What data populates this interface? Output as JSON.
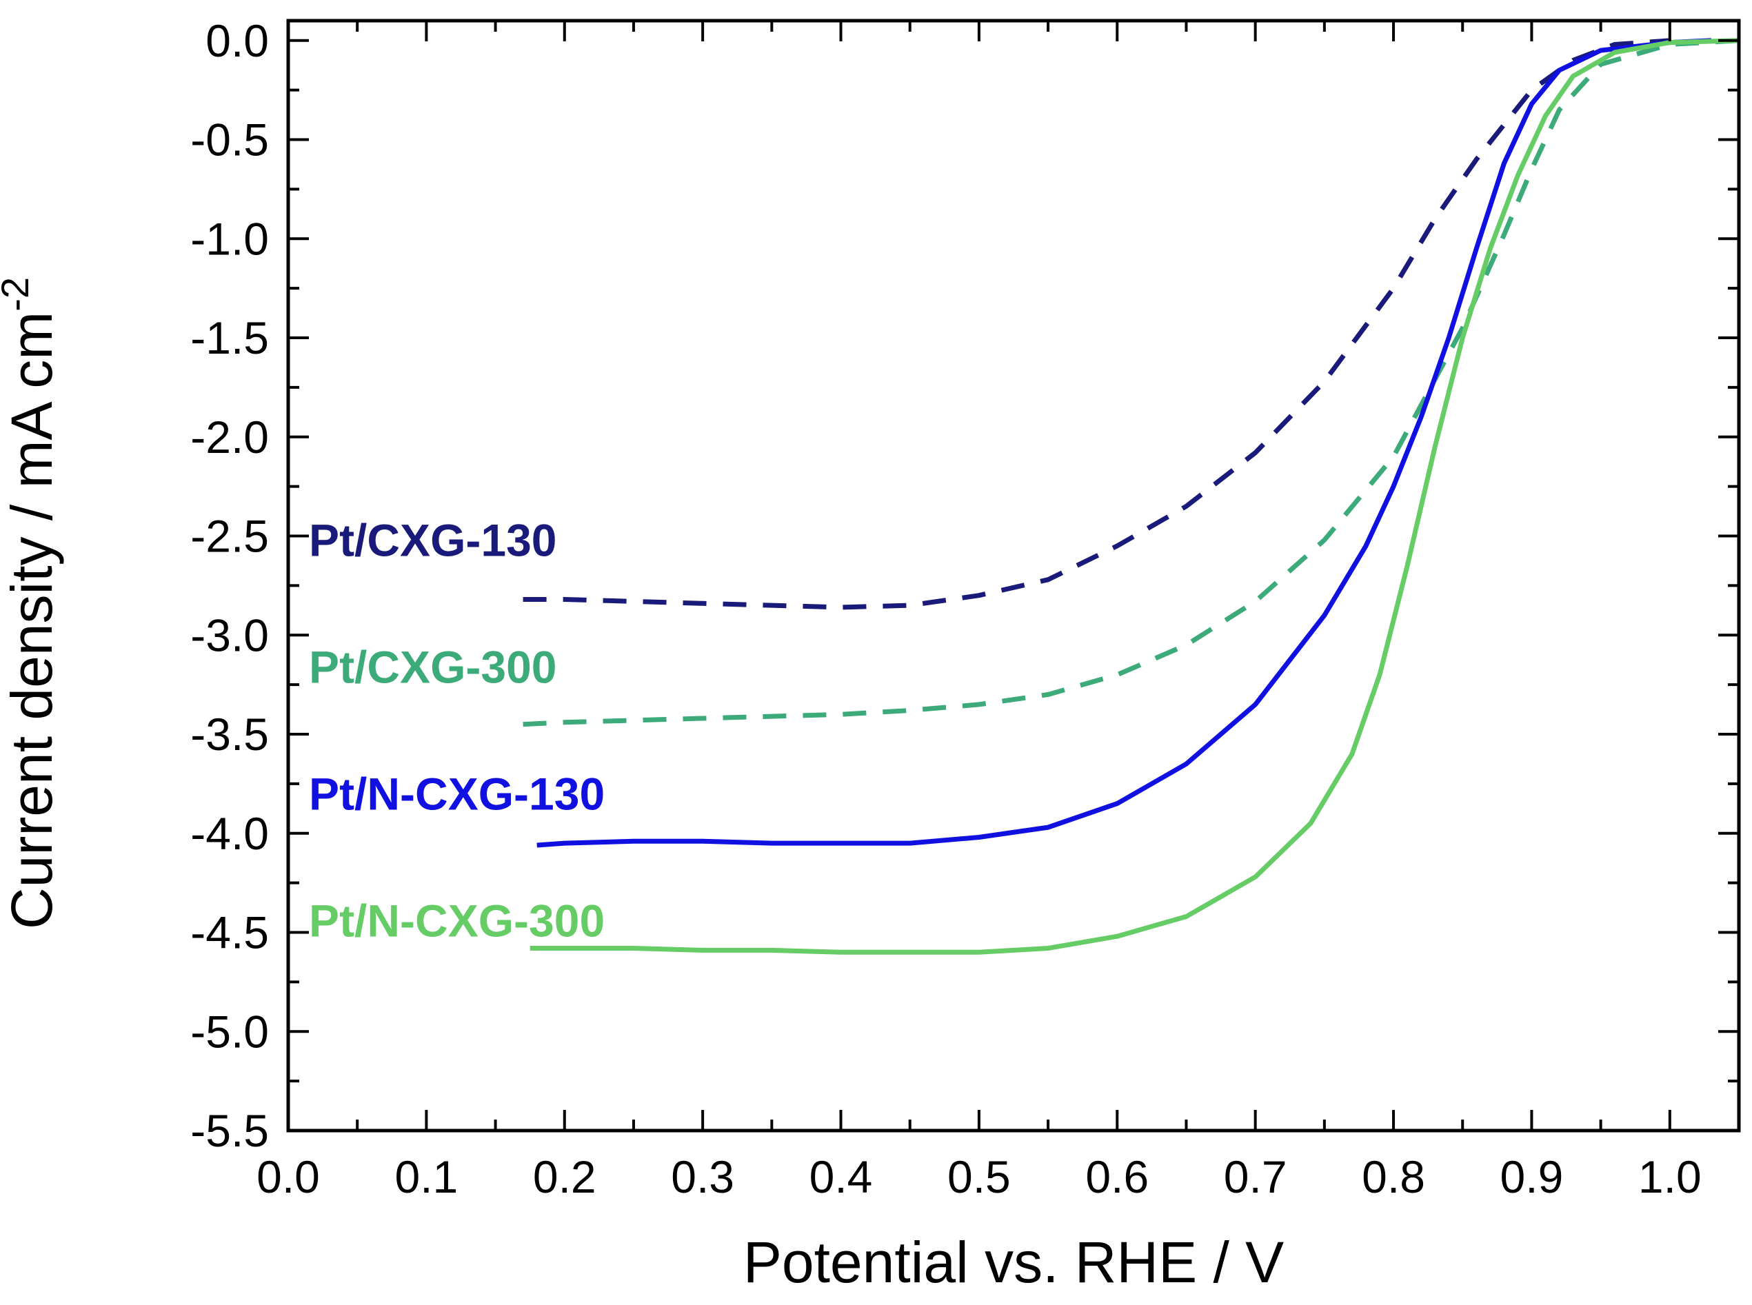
{
  "chart_data": {
    "type": "line",
    "title": "",
    "xlabel": "Potential vs. RHE / V",
    "ylabel_main": "Current density / mA cm",
    "ylabel_superscript": "-2",
    "xlim": [
      0.0,
      1.05
    ],
    "ylim": [
      -5.5,
      0.1
    ],
    "xticks": [
      {
        "value": 0.0,
        "label": "0.0"
      },
      {
        "value": 0.1,
        "label": "0.1"
      },
      {
        "value": 0.2,
        "label": "0.2"
      },
      {
        "value": 0.3,
        "label": "0.3"
      },
      {
        "value": 0.4,
        "label": "0.4"
      },
      {
        "value": 0.5,
        "label": "0.5"
      },
      {
        "value": 0.6,
        "label": "0.6"
      },
      {
        "value": 0.7,
        "label": "0.7"
      },
      {
        "value": 0.8,
        "label": "0.8"
      },
      {
        "value": 0.9,
        "label": "0.9"
      },
      {
        "value": 1.0,
        "label": "1.0"
      }
    ],
    "yticks": [
      {
        "value": 0.0,
        "label": "0.0"
      },
      {
        "value": -0.5,
        "label": "-0.5"
      },
      {
        "value": -1.0,
        "label": "-1.0"
      },
      {
        "value": -1.5,
        "label": "-1.5"
      },
      {
        "value": -2.0,
        "label": "-2.0"
      },
      {
        "value": -2.5,
        "label": "-2.5"
      },
      {
        "value": -3.0,
        "label": "-3.0"
      },
      {
        "value": -3.5,
        "label": "-3.5"
      },
      {
        "value": -4.0,
        "label": "-4.0"
      },
      {
        "value": -4.5,
        "label": "-4.5"
      },
      {
        "value": -5.0,
        "label": "-5.0"
      },
      {
        "value": -5.5,
        "label": "-5.5"
      }
    ],
    "grid": false,
    "series": [
      {
        "name": "Pt/CXG-130",
        "color": "#1a1a7a",
        "style": "dashed",
        "x": [
          0.17,
          0.2,
          0.25,
          0.3,
          0.35,
          0.4,
          0.45,
          0.5,
          0.55,
          0.6,
          0.65,
          0.7,
          0.75,
          0.8,
          0.83,
          0.86,
          0.9,
          0.93,
          0.96,
          1.0
        ],
        "y": [
          -2.82,
          -2.82,
          -2.83,
          -2.84,
          -2.85,
          -2.86,
          -2.85,
          -2.8,
          -2.72,
          -2.55,
          -2.35,
          -2.08,
          -1.72,
          -1.25,
          -0.9,
          -0.6,
          -0.25,
          -0.1,
          -0.02,
          0.0
        ]
      },
      {
        "name": "Pt/CXG-300",
        "color": "#3daa7a",
        "style": "dashed",
        "x": [
          0.17,
          0.2,
          0.25,
          0.3,
          0.35,
          0.4,
          0.45,
          0.5,
          0.55,
          0.6,
          0.65,
          0.7,
          0.75,
          0.8,
          0.85,
          0.88,
          0.9,
          0.92,
          0.95,
          1.0,
          1.05
        ],
        "y": [
          -3.45,
          -3.44,
          -3.43,
          -3.42,
          -3.41,
          -3.4,
          -3.38,
          -3.35,
          -3.3,
          -3.2,
          -3.05,
          -2.83,
          -2.52,
          -2.1,
          -1.45,
          -0.98,
          -0.65,
          -0.35,
          -0.12,
          -0.02,
          0.0
        ]
      },
      {
        "name": "Pt/N-CXG-130",
        "color": "#1010e0",
        "style": "solid",
        "x": [
          0.18,
          0.2,
          0.25,
          0.3,
          0.35,
          0.4,
          0.45,
          0.5,
          0.55,
          0.6,
          0.65,
          0.7,
          0.75,
          0.78,
          0.8,
          0.82,
          0.84,
          0.86,
          0.88,
          0.9,
          0.92,
          0.95,
          1.0,
          1.03
        ],
        "y": [
          -4.06,
          -4.05,
          -4.04,
          -4.04,
          -4.05,
          -4.05,
          -4.05,
          -4.02,
          -3.97,
          -3.85,
          -3.65,
          -3.35,
          -2.9,
          -2.55,
          -2.25,
          -1.9,
          -1.5,
          -1.05,
          -0.62,
          -0.32,
          -0.15,
          -0.05,
          -0.01,
          0.0
        ]
      },
      {
        "name": "Pt/N-CXG-300",
        "color": "#66cc66",
        "style": "solid",
        "x": [
          0.175,
          0.2,
          0.25,
          0.3,
          0.35,
          0.4,
          0.45,
          0.5,
          0.55,
          0.6,
          0.65,
          0.7,
          0.74,
          0.77,
          0.79,
          0.81,
          0.83,
          0.85,
          0.87,
          0.89,
          0.91,
          0.93,
          0.96,
          1.0,
          1.05
        ],
        "y": [
          -4.58,
          -4.58,
          -4.58,
          -4.59,
          -4.59,
          -4.6,
          -4.6,
          -4.6,
          -4.58,
          -4.52,
          -4.42,
          -4.22,
          -3.95,
          -3.6,
          -3.2,
          -2.65,
          -2.05,
          -1.5,
          -1.05,
          -0.68,
          -0.38,
          -0.18,
          -0.06,
          -0.01,
          0.0
        ]
      }
    ],
    "annotations": [
      {
        "text": "Pt/CXG-130",
        "color": "#1a1a7a",
        "x": 0.015,
        "y": -2.6
      },
      {
        "text": "Pt/CXG-300",
        "color": "#3daa7a",
        "x": 0.015,
        "y": -3.24
      },
      {
        "text": "Pt/N-CXG-130",
        "color": "#1010e0",
        "x": 0.015,
        "y": -3.88
      },
      {
        "text": "Pt/N-CXG-300",
        "color": "#66cc66",
        "x": 0.015,
        "y": -4.52
      }
    ]
  }
}
